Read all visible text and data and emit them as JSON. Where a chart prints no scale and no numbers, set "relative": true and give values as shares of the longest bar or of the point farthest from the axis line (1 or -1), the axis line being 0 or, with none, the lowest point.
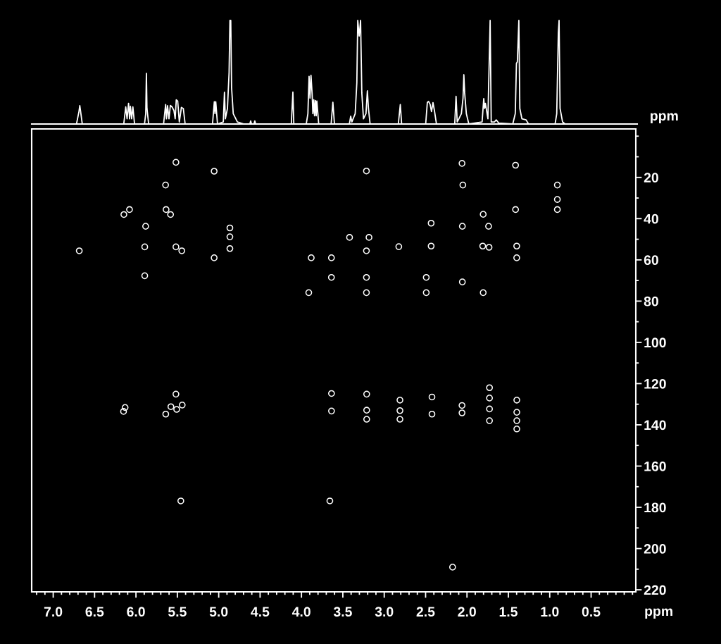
{
  "chart_data": [
    {
      "type": "line",
      "relative": true,
      "xlim": [
        7.26,
        -0.04
      ],
      "tick_labels": false,
      "line_style": "solid",
      "series": [
        {
          "color": "#ffffff",
          "x": [
            7.26,
            6.72,
            6.69,
            6.68,
            6.67,
            6.65,
            6.15,
            6.126,
            6.11,
            6.092,
            6.08,
            6.07,
            6.055,
            6.04,
            6.02,
            5.9,
            5.885,
            5.877,
            5.87,
            5.85,
            5.67,
            5.645,
            5.635,
            5.622,
            5.605,
            5.588,
            5.568,
            5.545,
            5.53,
            5.517,
            5.5,
            5.48,
            5.455,
            5.432,
            5.41,
            5.08,
            5.058,
            5.05,
            5.041,
            5.02,
            4.95,
            4.936,
            4.925,
            4.9,
            4.88,
            4.87,
            4.86,
            4.85,
            4.83,
            4.78,
            4.7,
            4.63,
            4.62,
            4.61,
            4.58,
            4.57,
            4.56,
            4.13,
            4.111,
            4.1,
            3.95,
            3.93,
            3.916,
            3.905,
            3.893,
            3.879,
            3.87,
            3.859,
            3.85,
            3.839,
            3.83,
            3.822,
            3.8,
            3.65,
            3.629,
            3.61,
            3.43,
            3.414,
            3.4,
            3.36,
            3.34,
            3.329,
            3.312,
            3.295,
            3.28,
            3.26,
            3.23,
            3.213,
            3.2,
            3.18,
            2.84,
            2.816,
            2.8,
            2.51,
            2.49,
            2.475,
            2.456,
            2.44,
            2.422,
            2.405,
            2.38,
            2.16,
            2.144,
            2.13,
            2.11,
            2.08,
            2.06,
            2.05,
            2.04,
            2.02,
            1.99,
            1.83,
            1.81,
            1.8,
            1.79,
            1.76,
            1.733,
            1.72,
            1.68,
            1.66,
            1.63,
            1.46,
            1.43,
            1.416,
            1.405,
            1.387,
            1.375,
            1.35,
            1.3,
            1.27,
            0.95,
            0.93,
            0.911,
            0.902,
            0.89,
            0.86,
            0.83,
            -0.04
          ],
          "values": [
            0,
            0,
            0.12,
            0.177,
            0.12,
            0,
            0,
            0.165,
            0.05,
            0.2,
            0.05,
            0.17,
            0.05,
            0.165,
            0,
            0,
            0.1,
            0.488,
            0.15,
            0,
            0,
            0.188,
            0.05,
            0.177,
            0.05,
            0.18,
            0.165,
            0.13,
            0.05,
            0.233,
            0.222,
            0.02,
            0.16,
            0.15,
            0,
            0,
            0.215,
            0.1,
            0.215,
            0,
            0.02,
            0.306,
            0.05,
            0.15,
            0.5,
            1,
            1,
            0.35,
            0.1,
            0.02,
            0,
            0,
            0.03,
            0,
            0,
            0.03,
            0,
            0,
            0.308,
            0,
            0,
            0.1,
            0.46,
            0.25,
            0.47,
            0.29,
            0.1,
            0.233,
            0.08,
            0.227,
            0.08,
            0.222,
            0,
            0,
            0.21,
            0,
            0,
            0.075,
            0.02,
            0.1,
            0.4,
            1,
            0.85,
            1,
            0.3,
            0.05,
            0.1,
            0.32,
            0.15,
            0,
            0,
            0.188,
            0,
            0,
            0.21,
            0.218,
            0.188,
            0.12,
            0.206,
            0.131,
            0,
            0,
            0.267,
            0.02,
            0.05,
            0.1,
            0.25,
            0.476,
            0.3,
            0.1,
            0,
            0.02,
            0.245,
            0.15,
            0.2,
            0.05,
            1,
            0.02,
            0.02,
            0.04,
            0.01,
            0,
            0.1,
            0.585,
            0.6,
            1,
            0.15,
            0.05,
            0.04,
            0,
            0,
            0.1,
            0.88,
            1,
            0.15,
            0.02,
            0,
            0
          ]
        }
      ]
    },
    {
      "type": "scatter",
      "marker": "circle",
      "grid": false,
      "xlabel": "ppm",
      "ylabel": "ppm",
      "xlim": [
        7.26,
        -0.04
      ],
      "ylim": [
        221,
        -3.5
      ],
      "xticks": [
        {
          "value": 7.2,
          "label": null
        },
        {
          "value": 7.1,
          "label": null
        },
        {
          "value": 7.0,
          "label": "7.0"
        },
        {
          "value": 6.9,
          "label": null
        },
        {
          "value": 6.8,
          "label": null
        },
        {
          "value": 6.7,
          "label": null
        },
        {
          "value": 6.6,
          "label": null
        },
        {
          "value": 6.5,
          "label": "6.5"
        },
        {
          "value": 6.4,
          "label": null
        },
        {
          "value": 6.3,
          "label": null
        },
        {
          "value": 6.2,
          "label": null
        },
        {
          "value": 6.1,
          "label": null
        },
        {
          "value": 6.0,
          "label": "6.0"
        },
        {
          "value": 5.9,
          "label": null
        },
        {
          "value": 5.8,
          "label": null
        },
        {
          "value": 5.7,
          "label": null
        },
        {
          "value": 5.6,
          "label": null
        },
        {
          "value": 5.5,
          "label": "5.5"
        },
        {
          "value": 5.4,
          "label": null
        },
        {
          "value": 5.3,
          "label": null
        },
        {
          "value": 5.2,
          "label": null
        },
        {
          "value": 5.1,
          "label": null
        },
        {
          "value": 5.0,
          "label": "5.0"
        },
        {
          "value": 4.9,
          "label": null
        },
        {
          "value": 4.8,
          "label": null
        },
        {
          "value": 4.7,
          "label": null
        },
        {
          "value": 4.6,
          "label": null
        },
        {
          "value": 4.5,
          "label": "4.5"
        },
        {
          "value": 4.4,
          "label": null
        },
        {
          "value": 4.3,
          "label": null
        },
        {
          "value": 4.2,
          "label": null
        },
        {
          "value": 4.1,
          "label": null
        },
        {
          "value": 4.0,
          "label": "4.0"
        },
        {
          "value": 3.9,
          "label": null
        },
        {
          "value": 3.8,
          "label": null
        },
        {
          "value": 3.7,
          "label": null
        },
        {
          "value": 3.6,
          "label": null
        },
        {
          "value": 3.5,
          "label": "3.5"
        },
        {
          "value": 3.4,
          "label": null
        },
        {
          "value": 3.3,
          "label": null
        },
        {
          "value": 3.2,
          "label": null
        },
        {
          "value": 3.1,
          "label": null
        },
        {
          "value": 3.0,
          "label": "3.0"
        },
        {
          "value": 2.9,
          "label": null
        },
        {
          "value": 2.8,
          "label": null
        },
        {
          "value": 2.7,
          "label": null
        },
        {
          "value": 2.6,
          "label": null
        },
        {
          "value": 2.5,
          "label": "2.5"
        },
        {
          "value": 2.4,
          "label": null
        },
        {
          "value": 2.3,
          "label": null
        },
        {
          "value": 2.2,
          "label": null
        },
        {
          "value": 2.1,
          "label": null
        },
        {
          "value": 2.0,
          "label": "2.0"
        },
        {
          "value": 1.9,
          "label": null
        },
        {
          "value": 1.8,
          "label": null
        },
        {
          "value": 1.7,
          "label": null
        },
        {
          "value": 1.6,
          "label": null
        },
        {
          "value": 1.5,
          "label": "1.5"
        },
        {
          "value": 1.4,
          "label": null
        },
        {
          "value": 1.3,
          "label": null
        },
        {
          "value": 1.2,
          "label": null
        },
        {
          "value": 1.1,
          "label": null
        },
        {
          "value": 1.0,
          "label": "1.0"
        },
        {
          "value": 0.9,
          "label": null
        },
        {
          "value": 0.8,
          "label": null
        },
        {
          "value": 0.7,
          "label": null
        },
        {
          "value": 0.6,
          "label": null
        },
        {
          "value": 0.5,
          "label": "0.5"
        },
        {
          "value": 0.4,
          "label": null
        },
        {
          "value": 0.3,
          "label": null
        },
        {
          "value": 0.2,
          "label": null
        },
        {
          "value": 0.1,
          "label": null
        },
        {
          "value": 0.0,
          "label": null
        }
      ],
      "yticks": [
        {
          "value": 0,
          "label": null
        },
        {
          "value": 10,
          "label": null
        },
        20,
        {
          "value": 30,
          "label": null
        },
        40,
        {
          "value": 50,
          "label": null
        },
        60,
        {
          "value": 70,
          "label": null
        },
        80,
        {
          "value": 90,
          "label": null
        },
        100,
        {
          "value": 110,
          "label": null
        },
        120,
        {
          "value": 130,
          "label": null
        },
        140,
        {
          "value": 150,
          "label": null
        },
        160,
        {
          "value": 170,
          "label": null
        },
        180,
        {
          "value": 190,
          "label": null
        },
        200,
        {
          "value": 210,
          "label": null
        },
        220
      ],
      "series": [
        {
          "color": "#ffffff",
          "x": [
            5.517,
            5.055,
            5.642,
            6.078,
            6.146,
            5.636,
            5.582,
            5.883,
            4.865,
            4.865,
            4.865,
            6.685,
            5.894,
            5.517,
            5.446,
            5.055,
            3.882,
            3.638,
            3.638,
            5.894,
            3.912,
            3.215,
            2.06,
            1.413,
            2.05,
            0.908,
            0.908,
            0.908,
            1.413,
            1.804,
            2.433,
            2.056,
            1.739,
            3.419,
            3.184,
            3.215,
            2.824,
            2.433,
            1.81,
            1.733,
            1.399,
            1.399,
            3.215,
            2.492,
            2.056,
            3.215,
            2.492,
            1.804,
            6.131,
            6.15,
            5.517,
            5.578,
            5.508,
            5.441,
            5.64,
            3.637,
            3.637,
            3.212,
            3.212,
            3.212,
            2.81,
            2.81,
            2.81,
            2.423,
            2.423,
            2.06,
            2.06,
            1.728,
            1.728,
            1.728,
            1.728,
            1.398,
            1.398,
            1.398,
            1.398,
            5.458,
            3.657,
            2.174
          ],
          "values": [
            12.7,
            17.0,
            23.7,
            35.6,
            38.0,
            35.6,
            38.0,
            43.7,
            44.5,
            48.8,
            54.5,
            55.6,
            53.7,
            53.7,
            55.6,
            59.0,
            59.0,
            59.0,
            68.5,
            67.7,
            75.9,
            16.9,
            13.2,
            14.1,
            23.7,
            23.7,
            30.7,
            35.6,
            35.6,
            37.9,
            42.2,
            43.7,
            43.7,
            49.1,
            49.1,
            55.6,
            53.6,
            53.3,
            53.3,
            53.9,
            53.3,
            59.0,
            68.5,
            68.5,
            70.7,
            75.9,
            75.9,
            75.9,
            131.6,
            133.5,
            125.1,
            131.2,
            132.5,
            130.4,
            134.8,
            124.8,
            133.3,
            125.1,
            132.9,
            137.3,
            128.0,
            133.1,
            137.3,
            126.5,
            134.8,
            130.6,
            134.2,
            122,
            127,
            132.3,
            138,
            128,
            133.9,
            138,
            142,
            176.9,
            176.9,
            209.0
          ]
        }
      ]
    }
  ]
}
